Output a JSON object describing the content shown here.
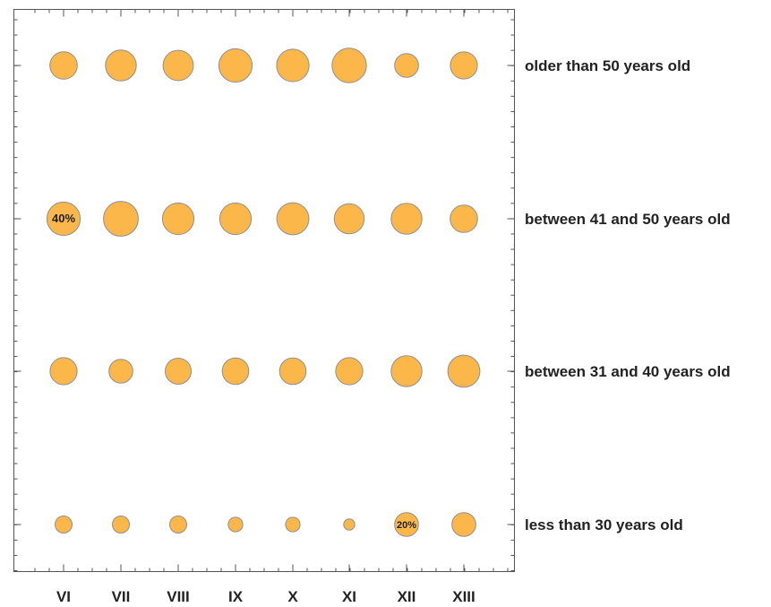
{
  "chart_data": {
    "type": "bubble",
    "x_categories": [
      "VI",
      "VII",
      "VIII",
      "IX",
      "X",
      "XI",
      "XII",
      "XIII"
    ],
    "y_categories": [
      "older than 50 years old",
      "between 41 and 50 years old",
      "between 31 and 40 years old",
      "less than 30 years old"
    ],
    "values": [
      [
        27,
        34,
        33,
        40,
        38,
        43,
        20,
        26
      ],
      [
        40,
        44,
        36,
        36,
        37,
        32,
        34,
        27
      ],
      [
        26,
        20,
        24,
        25,
        25,
        26,
        34,
        37
      ],
      [
        10,
        10,
        10,
        7,
        7,
        4,
        20,
        20
      ]
    ],
    "labeled_values": [
      {
        "row": 1,
        "col": 0,
        "text": "40%"
      },
      {
        "row": 3,
        "col": 6,
        "text": "20%"
      }
    ],
    "grid": false,
    "colors": {
      "bubble_fill": "#fcb74b",
      "bubble_stroke": "#8f8f8f",
      "axis": "#555555",
      "text": "#222222"
    }
  }
}
